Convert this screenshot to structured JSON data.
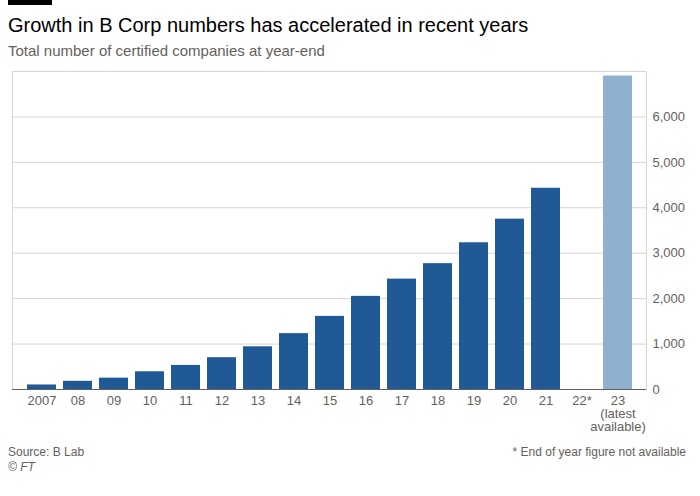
{
  "chart_data": {
    "type": "bar",
    "title": "Growth in B Corp numbers has accelerated in recent years",
    "subtitle": "Total number of certified companies at year-end",
    "categories": [
      "2007",
      "08",
      "09",
      "10",
      "11",
      "12",
      "13",
      "14",
      "15",
      "16",
      "17",
      "18",
      "19",
      "20",
      "21",
      "22*",
      "23\n(latest\navailable)"
    ],
    "values": [
      100,
      180,
      250,
      390,
      530,
      700,
      940,
      1230,
      1610,
      2050,
      2430,
      2770,
      3230,
      3750,
      4430,
      null,
      6900
    ],
    "colors": [
      "#1f5a96",
      "#1f5a96",
      "#1f5a96",
      "#1f5a96",
      "#1f5a96",
      "#1f5a96",
      "#1f5a96",
      "#1f5a96",
      "#1f5a96",
      "#1f5a96",
      "#1f5a96",
      "#1f5a96",
      "#1f5a96",
      "#1f5a96",
      "#1f5a96",
      "#1f5a96",
      "#8fb0cf"
    ],
    "ylim": [
      0,
      7000
    ],
    "yticks": [
      0,
      {
        "value": 1000,
        "label": "1,000"
      },
      {
        "value": 2000,
        "label": "2,000"
      },
      {
        "value": 3000,
        "label": "3,000"
      },
      {
        "value": 4000,
        "label": "4,000"
      },
      {
        "value": 5000,
        "label": "5,000"
      },
      {
        "value": 6000,
        "label": "6,000"
      }
    ],
    "grid": true,
    "source": "Source: B Lab",
    "footnote": "* End of year figure not available",
    "credit": "© FT"
  }
}
